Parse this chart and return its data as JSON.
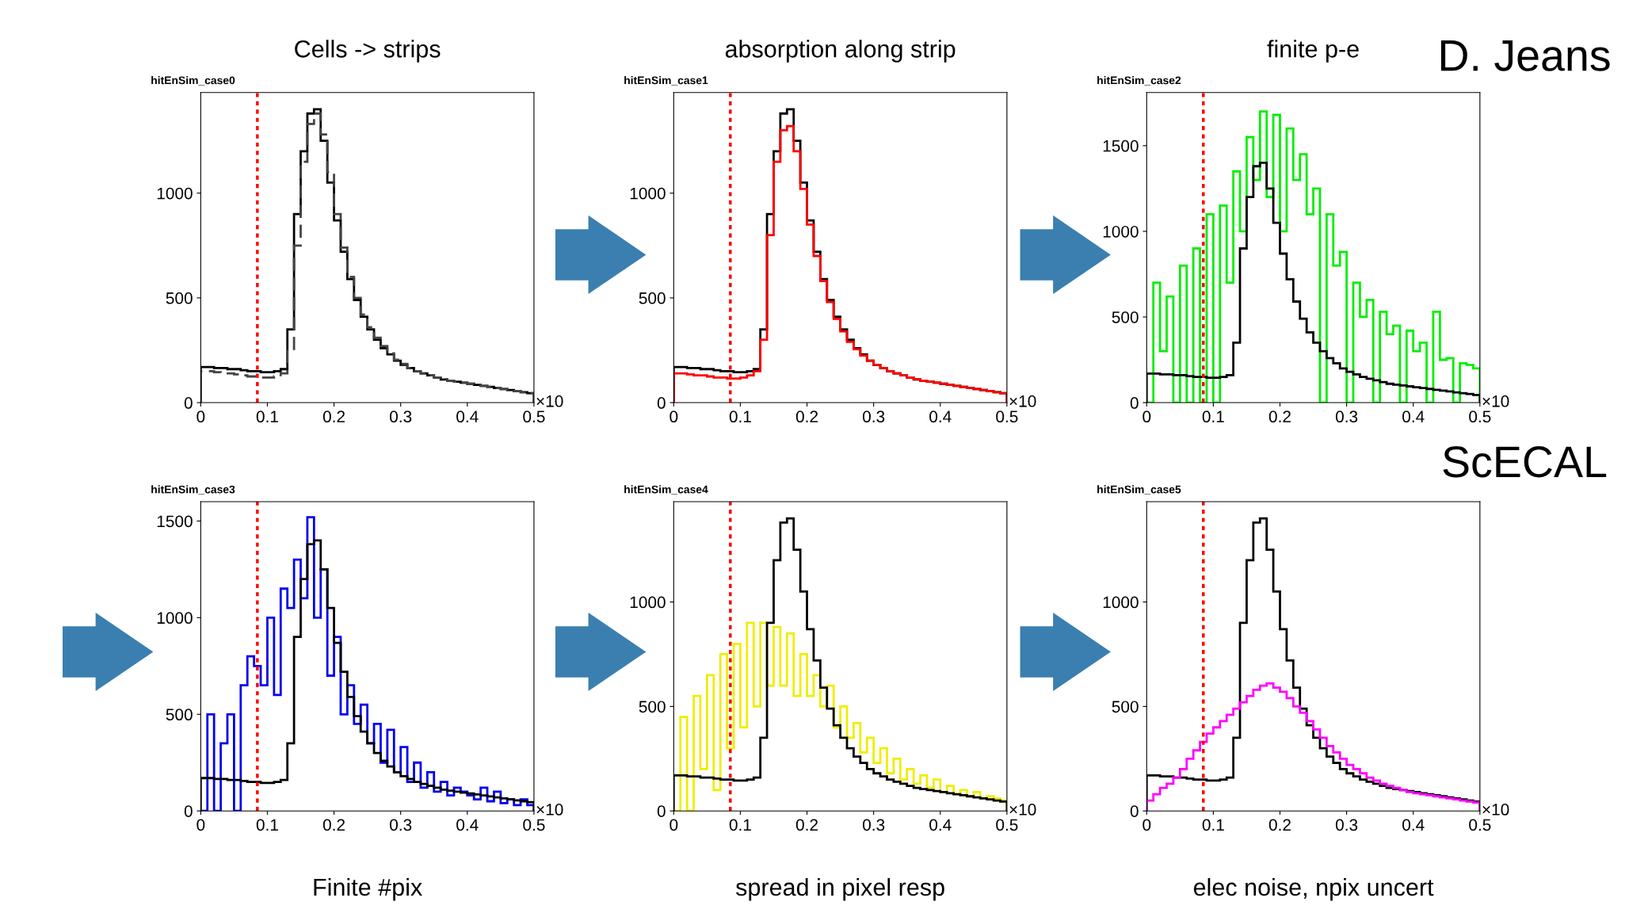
{
  "chart_data": [
    {
      "type": "histogram",
      "title": "Cells -> strips",
      "subtitle": "hitEnSim_case0",
      "annotations": [
        "×10"
      ],
      "bins": [
        0,
        0.01,
        0.02,
        0.03,
        0.04,
        0.05,
        0.06,
        0.07,
        0.08,
        0.09,
        0.1,
        0.11,
        0.12,
        0.13,
        0.14,
        0.15,
        0.16,
        0.17,
        0.18,
        0.19,
        0.2,
        0.21,
        0.22,
        0.23,
        0.24,
        0.25,
        0.26,
        0.27,
        0.28,
        0.29,
        0.3,
        0.31,
        0.32,
        0.33,
        0.34,
        0.35,
        0.36,
        0.37,
        0.38,
        0.39,
        0.4,
        0.41,
        0.42,
        0.43,
        0.44,
        0.45,
        0.46,
        0.47,
        0.48,
        0.49,
        0.5
      ],
      "xlim": [
        0,
        0.5
      ],
      "xticks": [
        0,
        0.1,
        0.2,
        0.3,
        0.4,
        0.5
      ],
      "ylim": [
        0,
        1480
      ],
      "yticks": [
        0,
        500,
        1000
      ],
      "grid": false,
      "legend": false,
      "ref_lines": [
        {
          "axis": "x",
          "value": 0.085,
          "color": "#ff0000",
          "line_style": "dotted"
        }
      ],
      "series": [
        {
          "color": "#000000",
          "line_style": "solid",
          "values": [
            170,
            170,
            165,
            165,
            160,
            160,
            155,
            150,
            150,
            145,
            145,
            150,
            160,
            350,
            900,
            1200,
            1380,
            1400,
            1250,
            1050,
            870,
            720,
            590,
            490,
            410,
            350,
            300,
            260,
            230,
            200,
            180,
            165,
            150,
            140,
            130,
            120,
            110,
            105,
            100,
            95,
            90,
            85,
            80,
            75,
            70,
            65,
            60,
            55,
            50,
            45
          ]
        },
        {
          "color": "#444444",
          "line_style": "dashed",
          "values": [
            150,
            150,
            145,
            140,
            140,
            135,
            130,
            125,
            125,
            120,
            120,
            125,
            140,
            250,
            750,
            1150,
            1330,
            1380,
            1280,
            1100,
            900,
            740,
            600,
            500,
            420,
            360,
            310,
            270,
            235,
            205,
            185,
            165,
            150,
            140,
            130,
            120,
            112,
            105,
            100,
            95,
            90,
            85,
            80,
            75,
            70,
            65,
            60,
            55,
            50,
            45
          ]
        }
      ]
    },
    {
      "type": "histogram",
      "title": "absorption along strip",
      "subtitle": "hitEnSim_case1",
      "annotations": [
        "×10"
      ],
      "bins": [
        0,
        0.01,
        0.02,
        0.03,
        0.04,
        0.05,
        0.06,
        0.07,
        0.08,
        0.09,
        0.1,
        0.11,
        0.12,
        0.13,
        0.14,
        0.15,
        0.16,
        0.17,
        0.18,
        0.19,
        0.2,
        0.21,
        0.22,
        0.23,
        0.24,
        0.25,
        0.26,
        0.27,
        0.28,
        0.29,
        0.3,
        0.31,
        0.32,
        0.33,
        0.34,
        0.35,
        0.36,
        0.37,
        0.38,
        0.39,
        0.4,
        0.41,
        0.42,
        0.43,
        0.44,
        0.45,
        0.46,
        0.47,
        0.48,
        0.49,
        0.5
      ],
      "xlim": [
        0,
        0.5
      ],
      "xticks": [
        0,
        0.1,
        0.2,
        0.3,
        0.4,
        0.5
      ],
      "ylim": [
        0,
        1480
      ],
      "yticks": [
        0,
        500,
        1000
      ],
      "grid": false,
      "legend": false,
      "ref_lines": [
        {
          "axis": "x",
          "value": 0.085,
          "color": "#ff0000",
          "line_style": "dotted"
        }
      ],
      "series": [
        {
          "color": "#000000",
          "line_style": "solid",
          "values": [
            170,
            170,
            165,
            165,
            160,
            160,
            155,
            150,
            150,
            145,
            145,
            150,
            160,
            350,
            900,
            1200,
            1380,
            1400,
            1250,
            1050,
            870,
            720,
            590,
            490,
            410,
            350,
            300,
            260,
            230,
            200,
            180,
            165,
            150,
            140,
            130,
            120,
            110,
            105,
            100,
            95,
            90,
            85,
            80,
            75,
            70,
            65,
            60,
            55,
            50,
            45
          ]
        },
        {
          "color": "#ff0000",
          "line_style": "solid",
          "values": [
            140,
            140,
            135,
            130,
            130,
            125,
            120,
            120,
            115,
            115,
            120,
            130,
            150,
            300,
            800,
            1150,
            1300,
            1320,
            1200,
            1020,
            850,
            700,
            580,
            480,
            400,
            340,
            290,
            255,
            225,
            200,
            180,
            165,
            150,
            140,
            130,
            120,
            112,
            105,
            100,
            95,
            90,
            85,
            80,
            75,
            70,
            65,
            60,
            55,
            50,
            45
          ]
        }
      ]
    },
    {
      "type": "histogram",
      "title": "finite p-e",
      "subtitle": "hitEnSim_case2",
      "annotations": [
        "×10",
        "D. Jeans"
      ],
      "bins": [
        0,
        0.01,
        0.02,
        0.03,
        0.04,
        0.05,
        0.06,
        0.07,
        0.08,
        0.09,
        0.1,
        0.11,
        0.12,
        0.13,
        0.14,
        0.15,
        0.16,
        0.17,
        0.18,
        0.19,
        0.2,
        0.21,
        0.22,
        0.23,
        0.24,
        0.25,
        0.26,
        0.27,
        0.28,
        0.29,
        0.3,
        0.31,
        0.32,
        0.33,
        0.34,
        0.35,
        0.36,
        0.37,
        0.38,
        0.39,
        0.4,
        0.41,
        0.42,
        0.43,
        0.44,
        0.45,
        0.46,
        0.47,
        0.48,
        0.49,
        0.5
      ],
      "xlim": [
        0,
        0.5
      ],
      "xticks": [
        0,
        0.1,
        0.2,
        0.3,
        0.4,
        0.5
      ],
      "ylim": [
        0,
        1810
      ],
      "yticks": [
        0,
        500,
        1000,
        1500
      ],
      "grid": false,
      "legend": false,
      "ref_lines": [
        {
          "axis": "x",
          "value": 0.085,
          "color": "#ff0000",
          "line_style": "dotted"
        }
      ],
      "series": [
        {
          "color": "#00ee00",
          "line_style": "solid",
          "values": [
            0,
            700,
            300,
            620,
            0,
            800,
            0,
            900,
            0,
            1100,
            0,
            1150,
            700,
            1350,
            1000,
            1550,
            1300,
            1700,
            1200,
            1680,
            1000,
            1600,
            1300,
            1450,
            1100,
            1250,
            0,
            1100,
            800,
            880,
            0,
            700,
            500,
            600,
            0,
            530,
            400,
            450,
            0,
            420,
            300,
            350,
            0,
            530,
            250,
            260,
            0,
            230,
            220,
            200
          ]
        },
        {
          "color": "#000000",
          "line_style": "solid",
          "values": [
            170,
            170,
            165,
            165,
            160,
            160,
            155,
            150,
            150,
            145,
            145,
            150,
            160,
            350,
            900,
            1200,
            1380,
            1400,
            1250,
            1050,
            870,
            720,
            590,
            490,
            410,
            350,
            300,
            260,
            230,
            200,
            180,
            165,
            150,
            140,
            130,
            120,
            110,
            105,
            100,
            95,
            90,
            85,
            80,
            75,
            70,
            65,
            60,
            55,
            50,
            45
          ]
        }
      ]
    },
    {
      "type": "histogram",
      "xlabel": "Finite #pix",
      "subtitle": "hitEnSim_case3",
      "annotations": [
        "×10"
      ],
      "bins": [
        0,
        0.01,
        0.02,
        0.03,
        0.04,
        0.05,
        0.06,
        0.07,
        0.08,
        0.09,
        0.1,
        0.11,
        0.12,
        0.13,
        0.14,
        0.15,
        0.16,
        0.17,
        0.18,
        0.19,
        0.2,
        0.21,
        0.22,
        0.23,
        0.24,
        0.25,
        0.26,
        0.27,
        0.28,
        0.29,
        0.3,
        0.31,
        0.32,
        0.33,
        0.34,
        0.35,
        0.36,
        0.37,
        0.38,
        0.39,
        0.4,
        0.41,
        0.42,
        0.43,
        0.44,
        0.45,
        0.46,
        0.47,
        0.48,
        0.49,
        0.5
      ],
      "xlim": [
        0,
        0.5
      ],
      "xticks": [
        0,
        0.1,
        0.2,
        0.3,
        0.4,
        0.5
      ],
      "ylim": [
        0,
        1600
      ],
      "yticks": [
        0,
        500,
        1000,
        1500
      ],
      "grid": false,
      "legend": false,
      "ref_lines": [
        {
          "axis": "x",
          "value": 0.085,
          "color": "#ff0000",
          "line_style": "dotted"
        }
      ],
      "series": [
        {
          "color": "#0000ee",
          "line_style": "solid",
          "values": [
            0,
            500,
            0,
            350,
            500,
            0,
            650,
            800,
            750,
            650,
            1000,
            600,
            1150,
            1050,
            1300,
            1100,
            1520,
            1000,
            1250,
            700,
            900,
            500,
            650,
            450,
            550,
            350,
            450,
            250,
            420,
            200,
            330,
            150,
            250,
            120,
            200,
            100,
            150,
            80,
            120,
            100,
            80,
            60,
            120,
            50,
            100,
            40,
            60,
            30,
            60,
            30
          ]
        },
        {
          "color": "#000000",
          "line_style": "solid",
          "values": [
            170,
            170,
            165,
            165,
            160,
            160,
            155,
            150,
            150,
            145,
            145,
            150,
            160,
            350,
            900,
            1200,
            1380,
            1400,
            1250,
            1050,
            870,
            720,
            590,
            490,
            410,
            350,
            300,
            260,
            230,
            200,
            180,
            165,
            150,
            140,
            130,
            120,
            110,
            105,
            100,
            95,
            90,
            85,
            80,
            75,
            70,
            65,
            60,
            55,
            50,
            45
          ]
        }
      ]
    },
    {
      "type": "histogram",
      "xlabel": "spread in pixel resp",
      "subtitle": "hitEnSim_case4",
      "annotations": [
        "×10"
      ],
      "bins": [
        0,
        0.01,
        0.02,
        0.03,
        0.04,
        0.05,
        0.06,
        0.07,
        0.08,
        0.09,
        0.1,
        0.11,
        0.12,
        0.13,
        0.14,
        0.15,
        0.16,
        0.17,
        0.18,
        0.19,
        0.2,
        0.21,
        0.22,
        0.23,
        0.24,
        0.25,
        0.26,
        0.27,
        0.28,
        0.29,
        0.3,
        0.31,
        0.32,
        0.33,
        0.34,
        0.35,
        0.36,
        0.37,
        0.38,
        0.39,
        0.4,
        0.41,
        0.42,
        0.43,
        0.44,
        0.45,
        0.46,
        0.47,
        0.48,
        0.49,
        0.5
      ],
      "xlim": [
        0,
        0.5
      ],
      "xticks": [
        0,
        0.1,
        0.2,
        0.3,
        0.4,
        0.5
      ],
      "ylim": [
        0,
        1480
      ],
      "yticks": [
        0,
        500,
        1000
      ],
      "grid": false,
      "legend": false,
      "ref_lines": [
        {
          "axis": "x",
          "value": 0.085,
          "color": "#ff0000",
          "line_style": "dotted"
        }
      ],
      "series": [
        {
          "color": "#eeee00",
          "line_style": "solid",
          "values": [
            0,
            450,
            0,
            550,
            200,
            650,
            100,
            750,
            300,
            800,
            400,
            900,
            500,
            900,
            600,
            880,
            600,
            850,
            550,
            750,
            550,
            650,
            500,
            600,
            400,
            500,
            350,
            420,
            280,
            350,
            230,
            300,
            180,
            250,
            150,
            200,
            130,
            170,
            110,
            150,
            90,
            120,
            80,
            100,
            70,
            90,
            60,
            70,
            60,
            50
          ]
        },
        {
          "color": "#000000",
          "line_style": "solid",
          "values": [
            170,
            170,
            165,
            165,
            160,
            160,
            155,
            150,
            150,
            145,
            145,
            150,
            160,
            350,
            900,
            1200,
            1380,
            1400,
            1250,
            1050,
            870,
            720,
            590,
            490,
            410,
            350,
            300,
            260,
            230,
            200,
            180,
            165,
            150,
            140,
            130,
            120,
            110,
            105,
            100,
            95,
            90,
            85,
            80,
            75,
            70,
            65,
            60,
            55,
            50,
            45
          ]
        }
      ]
    },
    {
      "type": "histogram",
      "xlabel": "elec noise, npix uncert",
      "subtitle": "hitEnSim_case5",
      "annotations": [
        "×10",
        "ScECAL"
      ],
      "bins": [
        0,
        0.01,
        0.02,
        0.03,
        0.04,
        0.05,
        0.06,
        0.07,
        0.08,
        0.09,
        0.1,
        0.11,
        0.12,
        0.13,
        0.14,
        0.15,
        0.16,
        0.17,
        0.18,
        0.19,
        0.2,
        0.21,
        0.22,
        0.23,
        0.24,
        0.25,
        0.26,
        0.27,
        0.28,
        0.29,
        0.3,
        0.31,
        0.32,
        0.33,
        0.34,
        0.35,
        0.36,
        0.37,
        0.38,
        0.39,
        0.4,
        0.41,
        0.42,
        0.43,
        0.44,
        0.45,
        0.46,
        0.47,
        0.48,
        0.49,
        0.5
      ],
      "xlim": [
        0,
        0.5
      ],
      "xticks": [
        0,
        0.1,
        0.2,
        0.3,
        0.4,
        0.5
      ],
      "ylim": [
        0,
        1480
      ],
      "yticks": [
        0,
        500,
        1000
      ],
      "grid": false,
      "legend": false,
      "ref_lines": [
        {
          "axis": "x",
          "value": 0.085,
          "color": "#ff0000",
          "line_style": "dotted"
        }
      ],
      "series": [
        {
          "color": "#000000",
          "line_style": "solid",
          "values": [
            170,
            170,
            165,
            165,
            160,
            160,
            155,
            150,
            150,
            145,
            145,
            150,
            160,
            350,
            900,
            1200,
            1380,
            1400,
            1250,
            1050,
            870,
            720,
            590,
            490,
            410,
            350,
            300,
            260,
            230,
            200,
            180,
            165,
            150,
            140,
            130,
            120,
            110,
            105,
            100,
            95,
            90,
            85,
            80,
            75,
            70,
            65,
            60,
            55,
            50,
            45
          ]
        },
        {
          "color": "#ff00ff",
          "line_style": "solid",
          "values": [
            50,
            80,
            110,
            130,
            160,
            200,
            250,
            290,
            330,
            370,
            400,
            430,
            460,
            490,
            520,
            550,
            580,
            600,
            610,
            590,
            570,
            540,
            500,
            470,
            430,
            390,
            350,
            310,
            280,
            250,
            220,
            200,
            180,
            160,
            145,
            130,
            120,
            110,
            100,
            90,
            85,
            80,
            75,
            70,
            65,
            60,
            55,
            50,
            45,
            40
          ]
        }
      ]
    }
  ]
}
